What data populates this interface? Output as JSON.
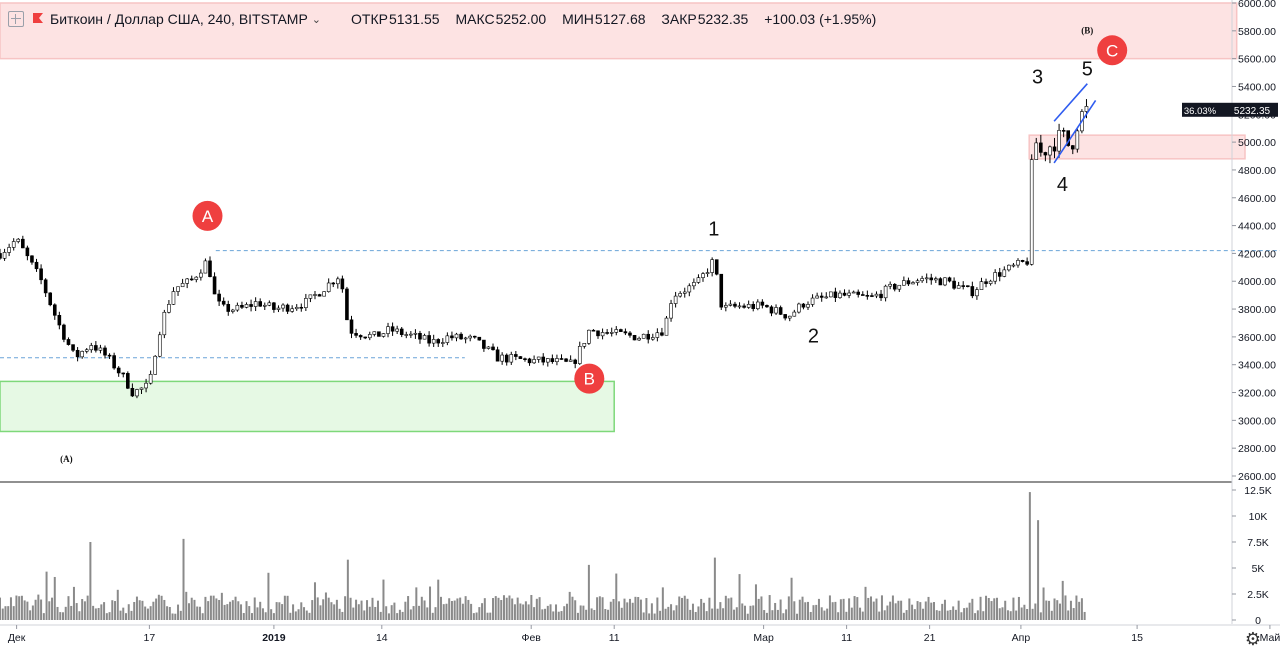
{
  "header": {
    "symbol_title": "Биткоин / Доллар США, 240, BITSTAMP",
    "ohlc": [
      {
        "key": "ОТКР",
        "value": "5131.55"
      },
      {
        "key": "МАКС",
        "value": "5252.00"
      },
      {
        "key": "МИН",
        "value": "5127.68"
      },
      {
        "key": "ЗАКР",
        "value": "5232.35"
      }
    ],
    "change": "+100.03 (+1.95%)"
  },
  "colors": {
    "candle": "#000000",
    "volume": "#8a8a8a",
    "zone_red_fill": "#fde3e3",
    "zone_red_stroke": "#f7c4c4",
    "zone_green_fill": "#e6f9e4",
    "zone_green_stroke": "#7ed87a",
    "dashed_level": "#6aa4d8",
    "marker_red": "#ef3f3f",
    "wedge_blue": "#2f5cf0",
    "price_tag_bg": "#131722"
  },
  "chart_data": {
    "type": "candlestick",
    "price_axis": {
      "ylim": [
        2600,
        6000
      ],
      "ticks": [
        "6000.00",
        "5800.00",
        "5600.00",
        "5400.00",
        "5200.00",
        "5000.00",
        "4800.00",
        "4600.00",
        "4400.00",
        "4200.00",
        "4000.00",
        "3800.00",
        "3600.00",
        "3400.00",
        "3200.00",
        "3000.00",
        "2800.00",
        "2600.00"
      ],
      "current_price": "5232.35",
      "current_change_pct": "36.03%"
    },
    "volume_axis": {
      "ylim": [
        0,
        12500
      ],
      "ticks": [
        "12.5K",
        "10K",
        "7.5K",
        "5K",
        "2.5K",
        "0"
      ]
    },
    "x_axis": {
      "ticks": [
        "Дек",
        "17",
        "2019",
        "14",
        "Фев",
        "11",
        "Мар",
        "11",
        "21",
        "Апр",
        "15",
        "Май"
      ]
    },
    "price_path": [
      [
        "2018-11-29",
        4200
      ],
      [
        "2018-12-01",
        4300
      ],
      [
        "2018-12-04",
        4000
      ],
      [
        "2018-12-06",
        3700
      ],
      [
        "2018-12-08",
        3450
      ],
      [
        "2018-12-10",
        3550
      ],
      [
        "2018-12-12",
        3450
      ],
      [
        "2018-12-14",
        3300
      ],
      [
        "2018-12-15",
        3200
      ],
      [
        "2018-12-17",
        3250
      ],
      [
        "2018-12-18",
        3600
      ],
      [
        "2018-12-19",
        3800
      ],
      [
        "2018-12-20",
        3950
      ],
      [
        "2018-12-22",
        4000
      ],
      [
        "2018-12-24",
        4150
      ],
      [
        "2018-12-25",
        3850
      ],
      [
        "2018-12-26",
        3800
      ],
      [
        "2018-12-28",
        3800
      ],
      [
        "2018-12-30",
        3850
      ],
      [
        "2019-01-01",
        3800
      ],
      [
        "2019-01-03",
        3820
      ],
      [
        "2019-01-05",
        3850
      ],
      [
        "2019-01-07",
        3950
      ],
      [
        "2019-01-09",
        4050
      ],
      [
        "2019-01-10",
        3650
      ],
      [
        "2019-01-13",
        3600
      ],
      [
        "2019-01-15",
        3650
      ],
      [
        "2019-01-18",
        3600
      ],
      [
        "2019-01-20",
        3560
      ],
      [
        "2019-01-22",
        3600
      ],
      [
        "2019-01-25",
        3580
      ],
      [
        "2019-01-28",
        3450
      ],
      [
        "2019-02-01",
        3430
      ],
      [
        "2019-02-04",
        3420
      ],
      [
        "2019-02-06",
        3400
      ],
      [
        "2019-02-08",
        3650
      ],
      [
        "2019-02-10",
        3630
      ],
      [
        "2019-02-14",
        3600
      ],
      [
        "2019-02-17",
        3650
      ],
      [
        "2019-02-18",
        3900
      ],
      [
        "2019-02-21",
        3980
      ],
      [
        "2019-02-23",
        4150
      ],
      [
        "2019-02-24",
        3800
      ],
      [
        "2019-02-26",
        3820
      ],
      [
        "2019-03-01",
        3820
      ],
      [
        "2019-03-04",
        3750
      ],
      [
        "2019-03-06",
        3850
      ],
      [
        "2019-03-10",
        3900
      ],
      [
        "2019-03-14",
        3880
      ],
      [
        "2019-03-17",
        3970
      ],
      [
        "2019-03-20",
        4020
      ],
      [
        "2019-03-23",
        4000
      ],
      [
        "2019-03-26",
        3920
      ],
      [
        "2019-03-28",
        4020
      ],
      [
        "2019-03-31",
        4100
      ],
      [
        "2019-04-02",
        4150
      ],
      [
        "2019-04-02",
        4700
      ],
      [
        "2019-04-03",
        5050
      ],
      [
        "2019-04-03",
        4900
      ],
      [
        "2019-04-05",
        5000
      ],
      [
        "2019-04-06",
        5050
      ],
      [
        "2019-04-07",
        4950
      ],
      [
        "2019-04-08",
        5180
      ],
      [
        "2019-04-09",
        5232
      ]
    ],
    "volume_spikes": [
      [
        "2018-12-10",
        7500
      ],
      [
        "2018-12-21",
        7800
      ],
      [
        "2019-01-10",
        5800
      ],
      [
        "2019-02-08",
        5300
      ],
      [
        "2019-02-23",
        6000
      ],
      [
        "2019-04-02",
        12300
      ],
      [
        "2019-04-03",
        9600
      ]
    ],
    "annotations": [
      {
        "label": "A",
        "style": "red-circle",
        "date": "2018-12-24",
        "price": 4470
      },
      {
        "label": "B",
        "style": "red-circle",
        "date": "2019-02-08",
        "price": 3300
      },
      {
        "label": "C",
        "style": "red-circle",
        "date": "2019-04-12",
        "price": 5660
      },
      {
        "label": "1",
        "style": "text",
        "date": "2019-02-23",
        "price": 4330
      },
      {
        "label": "2",
        "style": "text",
        "date": "2019-03-07",
        "price": 3560
      },
      {
        "label": "3",
        "style": "text",
        "date": "2019-04-03",
        "price": 5420
      },
      {
        "label": "4",
        "style": "text",
        "date": "2019-04-06",
        "price": 4650
      },
      {
        "label": "5",
        "style": "text",
        "date": "2019-04-09",
        "price": 5480
      },
      {
        "label": "(A)",
        "style": "small-text",
        "date": "2018-12-07",
        "price": 2700
      },
      {
        "label": "(B)",
        "style": "small-text",
        "date": "2019-04-09",
        "price": 5780
      }
    ],
    "zones": [
      {
        "name": "resistance-zone",
        "date_from": "2018-11-29",
        "date_to": "2019-04-27",
        "price_from": 5600,
        "price_to": 6000,
        "color": "red"
      },
      {
        "name": "support-zone",
        "date_from": "2018-11-29",
        "date_to": "2019-02-11",
        "price_from": 2920,
        "price_to": 3280,
        "color": "green"
      },
      {
        "name": "retest-zone",
        "date_from": "2019-04-02",
        "date_to": "2019-04-28",
        "price_from": 4880,
        "price_to": 5050,
        "color": "red"
      }
    ],
    "levels": [
      {
        "price": 4220,
        "date_from": "2018-12-25",
        "date_to": "2019-05-03"
      },
      {
        "price": 3450,
        "date_from": "2018-11-29",
        "date_to": "2019-01-24"
      }
    ],
    "wedge_lines": [
      {
        "from": [
          "2019-04-05",
          5150
        ],
        "to": [
          "2019-04-09",
          5420
        ]
      },
      {
        "from": [
          "2019-04-05",
          4850
        ],
        "to": [
          "2019-04-10",
          5300
        ]
      }
    ]
  }
}
